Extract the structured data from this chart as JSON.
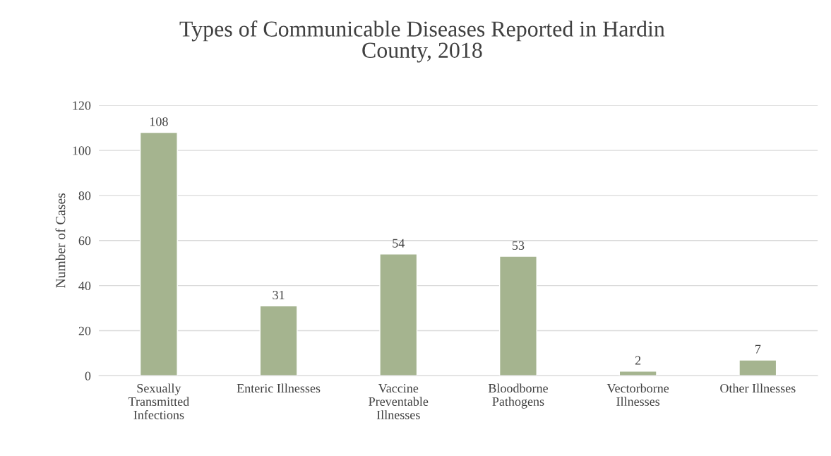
{
  "chart_data": {
    "type": "bar",
    "title": "Types of Communicable Diseases Reported in Hardin County, 2018",
    "ylabel": "Number of Cases",
    "categories": [
      "Sexually Transmitted Infections",
      "Enteric Illnesses",
      "Vaccine Preventable Illnesses",
      "Bloodborne Pathogens",
      "Vectorborne Illnesses",
      "Other Illnesses"
    ],
    "values": [
      108,
      31,
      54,
      53,
      2,
      7
    ],
    "color": "#a5b48f",
    "ylim": [
      0,
      120
    ],
    "yticks": [
      0,
      20,
      40,
      60,
      80,
      100,
      120
    ],
    "grid": "y",
    "data_labels": true
  }
}
